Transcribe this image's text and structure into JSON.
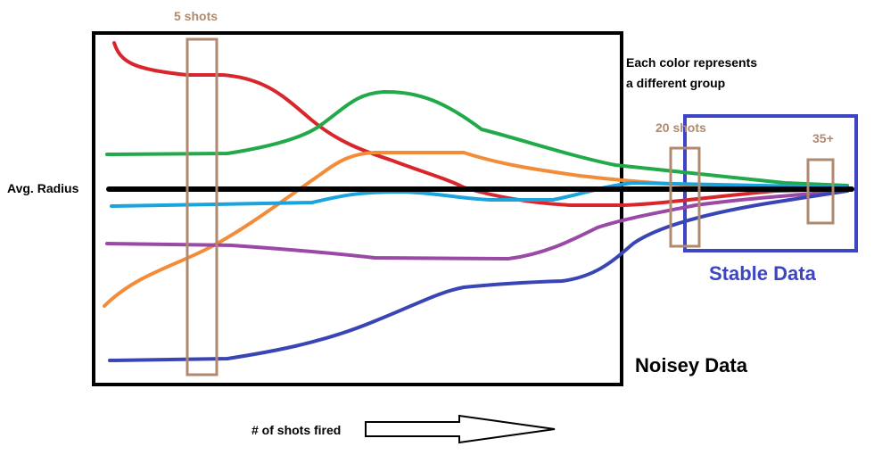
{
  "labels": {
    "five_shots": "5 shots",
    "twenty_shots": "20 shots",
    "thirty_five_plus": "35+",
    "legend_line1": "Each color represents",
    "legend_line2": "a different group",
    "avg_radius": "Avg. Radius",
    "stable_data": "Stable Data",
    "noisey_data": "Noisey Data",
    "shots_fired": "# of shots fired"
  },
  "colors": {
    "red_group": "#d9262c",
    "green_group": "#22aa4a",
    "orange_group": "#f28c38",
    "cyan_group": "#1aa3dd",
    "purple_group": "#9a4aa6",
    "blue_group": "#3a45b5",
    "average_line": "#000000",
    "marker_boxes": "#b08a6e",
    "stable_box": "#3d45c2",
    "noisy_box": "#000000"
  }
}
